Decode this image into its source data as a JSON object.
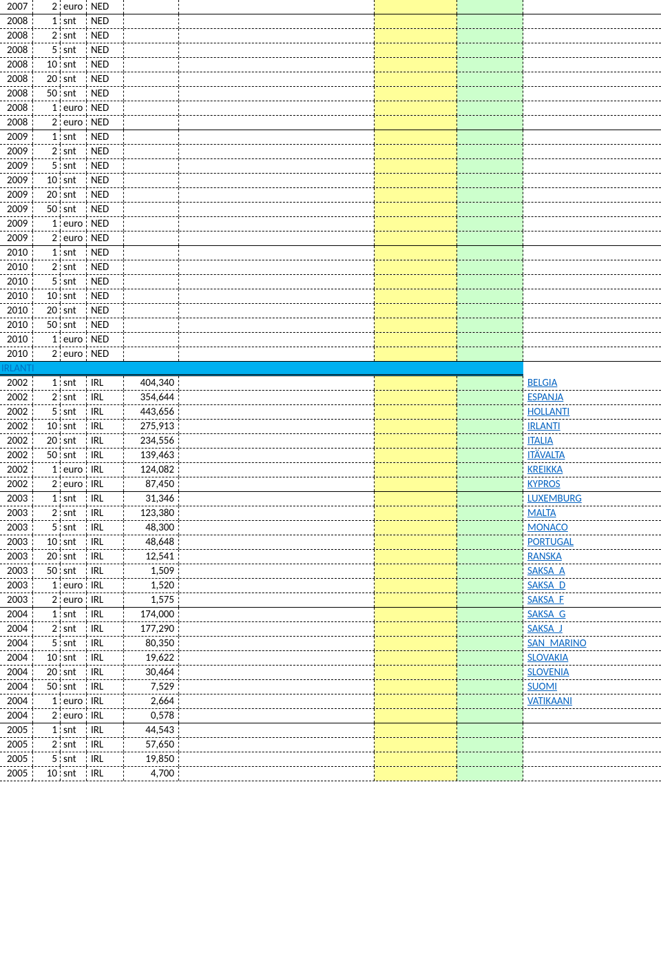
{
  "colors": {
    "yellow": "#ffff99",
    "green": "#ccffcc",
    "headerBg": "#00b0f0",
    "headerText": "#0070c0",
    "link": "#0563c1"
  },
  "sectionHeader": "IRLANTI",
  "nedRows": [
    {
      "year": "2007",
      "val": "2",
      "unit": "euro",
      "code": "NED",
      "border": "solid"
    },
    {
      "year": "2008",
      "val": "1",
      "unit": "snt",
      "code": "NED",
      "border": "dashed"
    },
    {
      "year": "2008",
      "val": "2",
      "unit": "snt",
      "code": "NED",
      "border": "dashed"
    },
    {
      "year": "2008",
      "val": "5",
      "unit": "snt",
      "code": "NED",
      "border": "dashed"
    },
    {
      "year": "2008",
      "val": "10",
      "unit": "snt",
      "code": "NED",
      "border": "dashed"
    },
    {
      "year": "2008",
      "val": "20",
      "unit": "snt",
      "code": "NED",
      "border": "dashed"
    },
    {
      "year": "2008",
      "val": "50",
      "unit": "snt",
      "code": "NED",
      "border": "dashed"
    },
    {
      "year": "2008",
      "val": "1",
      "unit": "euro",
      "code": "NED",
      "border": "dashed"
    },
    {
      "year": "2008",
      "val": "2",
      "unit": "euro",
      "code": "NED",
      "border": "solid"
    },
    {
      "year": "2009",
      "val": "1",
      "unit": "snt",
      "code": "NED",
      "border": "dashed"
    },
    {
      "year": "2009",
      "val": "2",
      "unit": "snt",
      "code": "NED",
      "border": "dashed"
    },
    {
      "year": "2009",
      "val": "5",
      "unit": "snt",
      "code": "NED",
      "border": "dashed"
    },
    {
      "year": "2009",
      "val": "10",
      "unit": "snt",
      "code": "NED",
      "border": "dashed"
    },
    {
      "year": "2009",
      "val": "20",
      "unit": "snt",
      "code": "NED",
      "border": "dashed"
    },
    {
      "year": "2009",
      "val": "50",
      "unit": "snt",
      "code": "NED",
      "border": "dashed"
    },
    {
      "year": "2009",
      "val": "1",
      "unit": "euro",
      "code": "NED",
      "border": "dashed"
    },
    {
      "year": "2009",
      "val": "2",
      "unit": "euro",
      "code": "NED",
      "border": "solid"
    },
    {
      "year": "2010",
      "val": "1",
      "unit": "snt",
      "code": "NED",
      "border": "dashed"
    },
    {
      "year": "2010",
      "val": "2",
      "unit": "snt",
      "code": "NED",
      "border": "dashed"
    },
    {
      "year": "2010",
      "val": "5",
      "unit": "snt",
      "code": "NED",
      "border": "dashed"
    },
    {
      "year": "2010",
      "val": "10",
      "unit": "snt",
      "code": "NED",
      "border": "dashed"
    },
    {
      "year": "2010",
      "val": "20",
      "unit": "snt",
      "code": "NED",
      "border": "dashed"
    },
    {
      "year": "2010",
      "val": "50",
      "unit": "snt",
      "code": "NED",
      "border": "dashed"
    },
    {
      "year": "2010",
      "val": "1",
      "unit": "euro",
      "code": "NED",
      "border": "dashed"
    },
    {
      "year": "2010",
      "val": "2",
      "unit": "euro",
      "code": "NED",
      "border": "solid"
    }
  ],
  "irlRows": [
    {
      "year": "2002",
      "val": "1",
      "unit": "snt",
      "code": "IRL",
      "amt": "404,340",
      "link": "BELGIA",
      "border": "dashed"
    },
    {
      "year": "2002",
      "val": "2",
      "unit": "snt",
      "code": "IRL",
      "amt": "354,644",
      "link": "ESPANJA",
      "border": "dashed"
    },
    {
      "year": "2002",
      "val": "5",
      "unit": "snt",
      "code": "IRL",
      "amt": "443,656",
      "link": "HOLLANTI",
      "border": "dashed"
    },
    {
      "year": "2002",
      "val": "10",
      "unit": "snt",
      "code": "IRL",
      "amt": "275,913",
      "link": "IRLANTI",
      "border": "dashed"
    },
    {
      "year": "2002",
      "val": "20",
      "unit": "snt",
      "code": "IRL",
      "amt": "234,556",
      "link": "ITALIA",
      "border": "dashed"
    },
    {
      "year": "2002",
      "val": "50",
      "unit": "snt",
      "code": "IRL",
      "amt": "139,463",
      "link": "ITÄVALTA",
      "border": "dashed"
    },
    {
      "year": "2002",
      "val": "1",
      "unit": "euro",
      "code": "IRL",
      "amt": "124,082",
      "link": "KREIKKA",
      "border": "dashed"
    },
    {
      "year": "2002",
      "val": "2",
      "unit": "euro",
      "code": "IRL",
      "amt": "87,450",
      "link": "KYPROS",
      "border": "solid"
    },
    {
      "year": "2003",
      "val": "1",
      "unit": "snt",
      "code": "IRL",
      "amt": "31,346",
      "link": "LUXEMBURG",
      "border": "dashed"
    },
    {
      "year": "2003",
      "val": "2",
      "unit": "snt",
      "code": "IRL",
      "amt": "123,380",
      "link": "MALTA",
      "border": "dashed"
    },
    {
      "year": "2003",
      "val": "5",
      "unit": "snt",
      "code": "IRL",
      "amt": "48,300",
      "link": "MONACO",
      "border": "dashed"
    },
    {
      "year": "2003",
      "val": "10",
      "unit": "snt",
      "code": "IRL",
      "amt": "48,648",
      "link": "PORTUGAL",
      "border": "dashed"
    },
    {
      "year": "2003",
      "val": "20",
      "unit": "snt",
      "code": "IRL",
      "amt": "12,541",
      "link": "RANSKA",
      "border": "dashed"
    },
    {
      "year": "2003",
      "val": "50",
      "unit": "snt",
      "code": "IRL",
      "amt": "1,509",
      "link": "SAKSA_A",
      "border": "dashed"
    },
    {
      "year": "2003",
      "val": "1",
      "unit": "euro",
      "code": "IRL",
      "amt": "1,520",
      "link": "SAKSA_D",
      "border": "dashed"
    },
    {
      "year": "2003",
      "val": "2",
      "unit": "euro",
      "code": "IRL",
      "amt": "1,575",
      "link": "SAKSA_F",
      "border": "solid"
    },
    {
      "year": "2004",
      "val": "1",
      "unit": "snt",
      "code": "IRL",
      "amt": "174,000",
      "link": "SAKSA_G",
      "border": "dashed"
    },
    {
      "year": "2004",
      "val": "2",
      "unit": "snt",
      "code": "IRL",
      "amt": "177,290",
      "link": "SAKSA_J",
      "border": "dashed"
    },
    {
      "year": "2004",
      "val": "5",
      "unit": "snt",
      "code": "IRL",
      "amt": "80,350",
      "link": "SAN_MARINO",
      "border": "dashed"
    },
    {
      "year": "2004",
      "val": "10",
      "unit": "snt",
      "code": "IRL",
      "amt": "19,622",
      "link": "SLOVAKIA",
      "border": "dashed"
    },
    {
      "year": "2004",
      "val": "20",
      "unit": "snt",
      "code": "IRL",
      "amt": "30,464",
      "link": "SLOVENIA",
      "border": "dashed"
    },
    {
      "year": "2004",
      "val": "50",
      "unit": "snt",
      "code": "IRL",
      "amt": "7,529",
      "link": "SUOMI",
      "border": "dashed"
    },
    {
      "year": "2004",
      "val": "1",
      "unit": "euro",
      "code": "IRL",
      "amt": "2,664",
      "link": "VATIKAANI",
      "border": "dashed"
    },
    {
      "year": "2004",
      "val": "2",
      "unit": "euro",
      "code": "IRL",
      "amt": "0,578",
      "link": "",
      "border": "solid"
    },
    {
      "year": "2005",
      "val": "1",
      "unit": "snt",
      "code": "IRL",
      "amt": "44,543",
      "link": "",
      "border": "dashed"
    },
    {
      "year": "2005",
      "val": "2",
      "unit": "snt",
      "code": "IRL",
      "amt": "57,650",
      "link": "",
      "border": "dashed"
    },
    {
      "year": "2005",
      "val": "5",
      "unit": "snt",
      "code": "IRL",
      "amt": "19,850",
      "link": "",
      "border": "dashed"
    },
    {
      "year": "2005",
      "val": "10",
      "unit": "snt",
      "code": "IRL",
      "amt": "4,700",
      "link": "",
      "border": "dashed"
    }
  ]
}
